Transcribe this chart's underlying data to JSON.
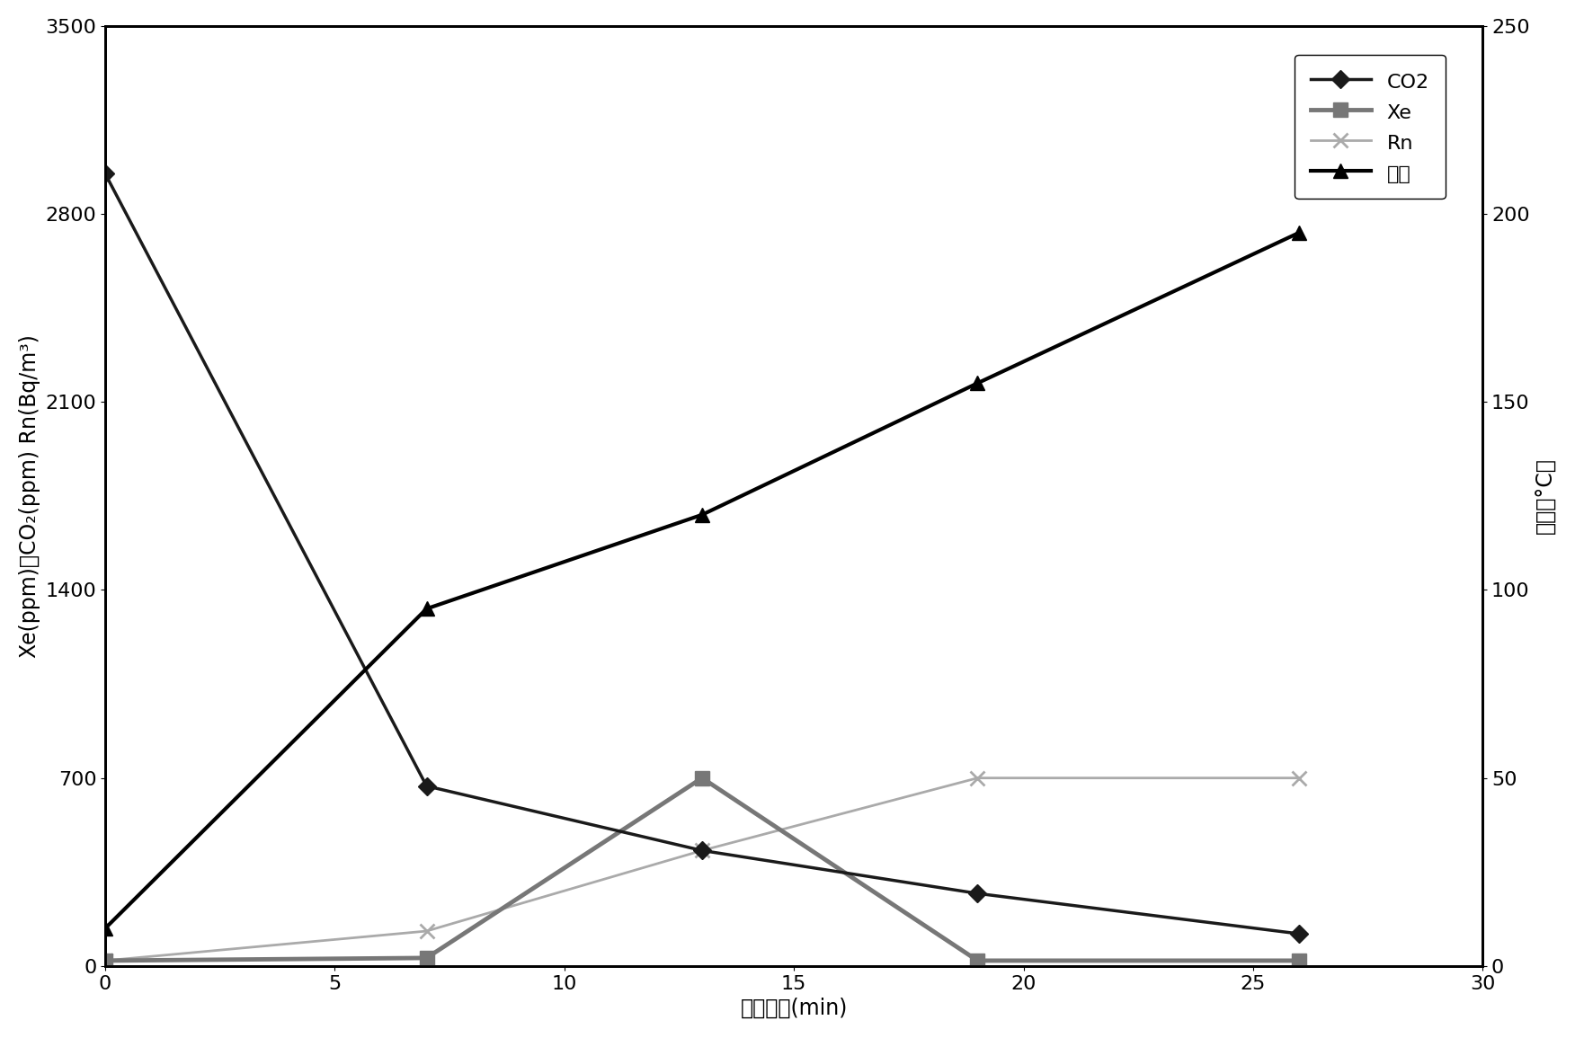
{
  "title": "",
  "xlabel": "加热时间(min)",
  "ylabel_left": "Xe(ppm)、CO₂(ppm) Rn(Bq/m³)",
  "ylabel_right": "温度（°C）",
  "xlim": [
    0,
    30
  ],
  "ylim_left": [
    0,
    3500
  ],
  "ylim_right": [
    0,
    250
  ],
  "yticks_left": [
    0,
    700,
    1400,
    2100,
    2800,
    3500
  ],
  "yticks_right": [
    0,
    50,
    100,
    150,
    200,
    250
  ],
  "xticks": [
    0,
    5,
    10,
    15,
    20,
    25,
    30
  ],
  "CO2": {
    "x": [
      0,
      7,
      13,
      19,
      26
    ],
    "y": [
      2950,
      670,
      430,
      270,
      120
    ],
    "color": "#1a1a1a",
    "marker": "D",
    "markersize": 10,
    "linewidth": 2.5,
    "label": "CO2"
  },
  "Xe": {
    "x": [
      0,
      7,
      13,
      19,
      26
    ],
    "y": [
      20,
      30,
      700,
      20,
      20
    ],
    "color": "#777777",
    "marker": "s",
    "markersize": 11,
    "linewidth": 3.5,
    "label": "Xe"
  },
  "Rn": {
    "x": [
      0,
      7,
      13,
      19,
      26
    ],
    "y": [
      20,
      130,
      430,
      700,
      700
    ],
    "color": "#aaaaaa",
    "marker": "x",
    "markersize": 11,
    "linewidth": 2.0,
    "label": "Rn"
  },
  "temp": {
    "x": [
      0,
      7,
      13,
      19,
      26
    ],
    "y_right": [
      10,
      95,
      120,
      155,
      195
    ],
    "color": "#000000",
    "marker": "^",
    "markersize": 11,
    "linewidth": 3.0,
    "label": "温度"
  },
  "background_color": "#ffffff",
  "legend_fontsize": 16,
  "axis_fontsize": 17,
  "tick_fontsize": 16,
  "figwidth": 17.52,
  "figheight": 11.55,
  "dpi": 100
}
